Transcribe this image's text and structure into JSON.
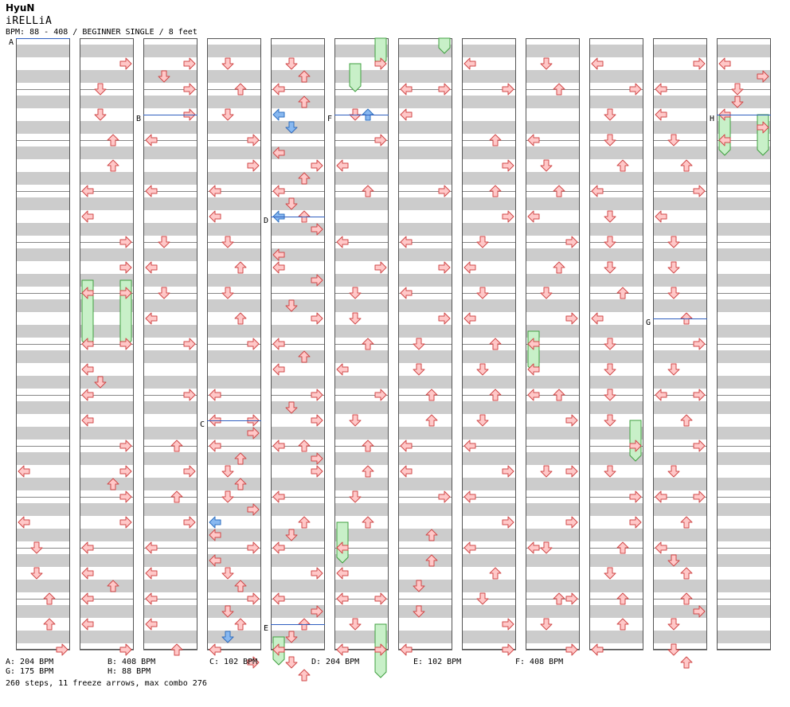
{
  "header": {
    "artist": "HyuN",
    "title": "iRELLiA",
    "meta": "BPM: 88 - 408 / BEGINNER SINGLE / 8 feet"
  },
  "bpm_legend": [
    {
      "text": "A: 204 BPM"
    },
    {
      "text": "B: 408 BPM"
    },
    {
      "text": "C: 102 BPM"
    },
    {
      "text": "D: 204 BPM"
    },
    {
      "text": "E: 102 BPM"
    },
    {
      "text": "F: 408 BPM"
    },
    {
      "text": "G: 175 BPM"
    },
    {
      "text": "H: 88 BPM"
    }
  ],
  "summary": "260 steps, 11 freeze arrows, max combo 276",
  "colors": {
    "stripe": "#cccccc",
    "arrow_fill": "#ffc8c8",
    "arrow_stroke": "#d04848",
    "shock_fill": "#88b8f0",
    "shock_stroke": "#3070c0",
    "freeze_fill": "#c8f0c8",
    "freeze_stroke": "#40a040",
    "bpm_line": "#3060c0"
  },
  "chart_data": {
    "type": "step-chart",
    "columns": 12,
    "rows_per_column": 48,
    "bpm_markers": [
      {
        "label": "A",
        "col": 0,
        "row": 0
      },
      {
        "label": "B",
        "col": 2,
        "row": 6
      },
      {
        "label": "C",
        "col": 3,
        "row": 30
      },
      {
        "label": "D",
        "col": 4,
        "row": 14
      },
      {
        "label": "E",
        "col": 4,
        "row": 46
      },
      {
        "label": "F",
        "col": 5,
        "row": 6
      },
      {
        "label": "G",
        "col": 10,
        "row": 22
      },
      {
        "label": "H",
        "col": 11,
        "row": 6
      }
    ],
    "arrows": [
      [
        0,
        34,
        "L"
      ],
      [
        0,
        38,
        "L"
      ],
      [
        0,
        40,
        "D"
      ],
      [
        0,
        42,
        "D"
      ],
      [
        0,
        44,
        "U"
      ],
      [
        0,
        46,
        "U"
      ],
      [
        0,
        48,
        "R"
      ],
      [
        1,
        2,
        "R"
      ],
      [
        1,
        4,
        "D"
      ],
      [
        1,
        6,
        "D"
      ],
      [
        1,
        8,
        "U"
      ],
      [
        1,
        10,
        "U"
      ],
      [
        1,
        12,
        "L"
      ],
      [
        1,
        14,
        "L"
      ],
      [
        1,
        16,
        "R"
      ],
      [
        1,
        18,
        "R"
      ],
      [
        1,
        20,
        "L"
      ],
      [
        1,
        20,
        "R"
      ],
      [
        1,
        24,
        "L"
      ],
      [
        1,
        24,
        "R"
      ],
      [
        1,
        26,
        "L"
      ],
      [
        1,
        27,
        "D"
      ],
      [
        1,
        28,
        "L"
      ],
      [
        1,
        30,
        "L"
      ],
      [
        1,
        32,
        "R"
      ],
      [
        1,
        34,
        "R"
      ],
      [
        1,
        35,
        "U"
      ],
      [
        1,
        36,
        "R"
      ],
      [
        1,
        38,
        "R"
      ],
      [
        1,
        40,
        "L"
      ],
      [
        1,
        42,
        "L"
      ],
      [
        1,
        43,
        "U"
      ],
      [
        1,
        44,
        "L"
      ],
      [
        1,
        46,
        "L"
      ],
      [
        1,
        48,
        "R"
      ],
      [
        2,
        2,
        "R"
      ],
      [
        2,
        3,
        "D"
      ],
      [
        2,
        4,
        "R"
      ],
      [
        2,
        6,
        "R"
      ],
      [
        2,
        8,
        "L"
      ],
      [
        2,
        12,
        "L"
      ],
      [
        2,
        16,
        "D"
      ],
      [
        2,
        18,
        "L"
      ],
      [
        2,
        20,
        "D"
      ],
      [
        2,
        22,
        "L"
      ],
      [
        2,
        24,
        "R"
      ],
      [
        2,
        28,
        "R"
      ],
      [
        2,
        32,
        "U"
      ],
      [
        2,
        34,
        "R"
      ],
      [
        2,
        36,
        "U"
      ],
      [
        2,
        38,
        "R"
      ],
      [
        2,
        40,
        "L"
      ],
      [
        2,
        42,
        "L"
      ],
      [
        2,
        44,
        "L"
      ],
      [
        2,
        46,
        "L"
      ],
      [
        2,
        48,
        "U"
      ],
      [
        3,
        2,
        "D"
      ],
      [
        3,
        4,
        "U"
      ],
      [
        3,
        6,
        "D"
      ],
      [
        3,
        8,
        "R"
      ],
      [
        3,
        10,
        "R"
      ],
      [
        3,
        12,
        "L"
      ],
      [
        3,
        14,
        "L"
      ],
      [
        3,
        16,
        "D"
      ],
      [
        3,
        18,
        "U"
      ],
      [
        3,
        20,
        "D"
      ],
      [
        3,
        22,
        "U"
      ],
      [
        3,
        24,
        "R"
      ],
      [
        3,
        28,
        "L"
      ],
      [
        3,
        30,
        "L"
      ],
      [
        3,
        30,
        "R"
      ],
      [
        3,
        31,
        "R"
      ],
      [
        3,
        32,
        "L"
      ],
      [
        3,
        33,
        "U"
      ],
      [
        3,
        34,
        "D"
      ],
      [
        3,
        35,
        "U"
      ],
      [
        3,
        36,
        "D"
      ],
      [
        3,
        37,
        "R"
      ],
      [
        3,
        39,
        "L"
      ],
      [
        3,
        40,
        "R"
      ],
      [
        3,
        41,
        "L"
      ],
      [
        3,
        42,
        "D"
      ],
      [
        3,
        43,
        "U"
      ],
      [
        3,
        44,
        "R"
      ],
      [
        3,
        45,
        "D"
      ],
      [
        3,
        46,
        "U"
      ],
      [
        3,
        47,
        "D"
      ],
      [
        3,
        48,
        "L"
      ],
      [
        3,
        49,
        "R"
      ],
      [
        4,
        2,
        "D"
      ],
      [
        4,
        3,
        "U"
      ],
      [
        4,
        4,
        "L"
      ],
      [
        4,
        5,
        "U"
      ],
      [
        4,
        7,
        "D"
      ],
      [
        4,
        9,
        "L"
      ],
      [
        4,
        10,
        "R"
      ],
      [
        4,
        11,
        "U"
      ],
      [
        4,
        12,
        "L"
      ],
      [
        4,
        13,
        "D"
      ],
      [
        4,
        14,
        "U"
      ],
      [
        4,
        15,
        "R"
      ],
      [
        4,
        17,
        "L"
      ],
      [
        4,
        18,
        "L"
      ],
      [
        4,
        19,
        "R"
      ],
      [
        4,
        21,
        "D"
      ],
      [
        4,
        22,
        "R"
      ],
      [
        4,
        24,
        "L"
      ],
      [
        4,
        25,
        "U"
      ],
      [
        4,
        26,
        "L"
      ],
      [
        4,
        28,
        "R"
      ],
      [
        4,
        29,
        "D"
      ],
      [
        4,
        30,
        "R"
      ],
      [
        4,
        32,
        "L"
      ],
      [
        4,
        32,
        "U"
      ],
      [
        4,
        33,
        "R"
      ],
      [
        4,
        34,
        "R"
      ],
      [
        4,
        36,
        "L"
      ],
      [
        4,
        38,
        "U"
      ],
      [
        4,
        39,
        "D"
      ],
      [
        4,
        40,
        "L"
      ],
      [
        4,
        42,
        "R"
      ],
      [
        4,
        44,
        "L"
      ],
      [
        4,
        45,
        "R"
      ],
      [
        4,
        46,
        "U"
      ],
      [
        4,
        47,
        "D"
      ],
      [
        4,
        48,
        "L"
      ],
      [
        4,
        49,
        "D"
      ],
      [
        4,
        50,
        "U"
      ],
      [
        5,
        2,
        "R"
      ],
      [
        5,
        6,
        "D"
      ],
      [
        5,
        8,
        "R"
      ],
      [
        5,
        10,
        "L"
      ],
      [
        5,
        12,
        "U"
      ],
      [
        5,
        16,
        "L"
      ],
      [
        5,
        18,
        "R"
      ],
      [
        5,
        20,
        "D"
      ],
      [
        5,
        22,
        "D"
      ],
      [
        5,
        24,
        "U"
      ],
      [
        5,
        26,
        "L"
      ],
      [
        5,
        28,
        "R"
      ],
      [
        5,
        30,
        "D"
      ],
      [
        5,
        32,
        "U"
      ],
      [
        5,
        34,
        "U"
      ],
      [
        5,
        36,
        "D"
      ],
      [
        5,
        38,
        "U"
      ],
      [
        5,
        40,
        "L"
      ],
      [
        5,
        42,
        "L"
      ],
      [
        5,
        44,
        "L"
      ],
      [
        5,
        44,
        "R"
      ],
      [
        5,
        46,
        "D"
      ],
      [
        5,
        48,
        "L"
      ],
      [
        5,
        48,
        "R"
      ],
      [
        6,
        4,
        "L"
      ],
      [
        6,
        4,
        "R"
      ],
      [
        6,
        6,
        "L"
      ],
      [
        6,
        12,
        "R"
      ],
      [
        6,
        16,
        "L"
      ],
      [
        6,
        18,
        "R"
      ],
      [
        6,
        20,
        "L"
      ],
      [
        6,
        22,
        "R"
      ],
      [
        6,
        24,
        "D"
      ],
      [
        6,
        26,
        "D"
      ],
      [
        6,
        28,
        "U"
      ],
      [
        6,
        30,
        "U"
      ],
      [
        6,
        32,
        "L"
      ],
      [
        6,
        34,
        "L"
      ],
      [
        6,
        36,
        "R"
      ],
      [
        6,
        39,
        "U"
      ],
      [
        6,
        41,
        "U"
      ],
      [
        6,
        43,
        "D"
      ],
      [
        6,
        45,
        "D"
      ],
      [
        6,
        48,
        "L"
      ],
      [
        7,
        2,
        "L"
      ],
      [
        7,
        4,
        "R"
      ],
      [
        7,
        8,
        "U"
      ],
      [
        7,
        10,
        "R"
      ],
      [
        7,
        12,
        "U"
      ],
      [
        7,
        14,
        "R"
      ],
      [
        7,
        16,
        "D"
      ],
      [
        7,
        18,
        "L"
      ],
      [
        7,
        20,
        "D"
      ],
      [
        7,
        22,
        "L"
      ],
      [
        7,
        24,
        "U"
      ],
      [
        7,
        26,
        "D"
      ],
      [
        7,
        28,
        "U"
      ],
      [
        7,
        30,
        "D"
      ],
      [
        7,
        32,
        "L"
      ],
      [
        7,
        34,
        "R"
      ],
      [
        7,
        36,
        "L"
      ],
      [
        7,
        38,
        "R"
      ],
      [
        7,
        40,
        "L"
      ],
      [
        7,
        42,
        "U"
      ],
      [
        7,
        44,
        "D"
      ],
      [
        7,
        46,
        "R"
      ],
      [
        7,
        48,
        "R"
      ],
      [
        8,
        2,
        "D"
      ],
      [
        8,
        4,
        "U"
      ],
      [
        8,
        8,
        "L"
      ],
      [
        8,
        10,
        "D"
      ],
      [
        8,
        12,
        "U"
      ],
      [
        8,
        14,
        "L"
      ],
      [
        8,
        16,
        "R"
      ],
      [
        8,
        18,
        "U"
      ],
      [
        8,
        20,
        "D"
      ],
      [
        8,
        22,
        "R"
      ],
      [
        8,
        24,
        "L"
      ],
      [
        8,
        26,
        "L"
      ],
      [
        8,
        28,
        "L"
      ],
      [
        8,
        28,
        "U"
      ],
      [
        8,
        30,
        "R"
      ],
      [
        8,
        34,
        "D"
      ],
      [
        8,
        34,
        "R"
      ],
      [
        8,
        38,
        "R"
      ],
      [
        8,
        40,
        "L"
      ],
      [
        8,
        40,
        "D"
      ],
      [
        8,
        44,
        "U"
      ],
      [
        8,
        44,
        "R"
      ],
      [
        8,
        46,
        "D"
      ],
      [
        8,
        48,
        "R"
      ],
      [
        9,
        2,
        "L"
      ],
      [
        9,
        4,
        "R"
      ],
      [
        9,
        6,
        "D"
      ],
      [
        9,
        8,
        "D"
      ],
      [
        9,
        10,
        "U"
      ],
      [
        9,
        12,
        "L"
      ],
      [
        9,
        14,
        "D"
      ],
      [
        9,
        16,
        "D"
      ],
      [
        9,
        18,
        "D"
      ],
      [
        9,
        20,
        "U"
      ],
      [
        9,
        22,
        "L"
      ],
      [
        9,
        24,
        "D"
      ],
      [
        9,
        26,
        "D"
      ],
      [
        9,
        28,
        "D"
      ],
      [
        9,
        30,
        "D"
      ],
      [
        9,
        32,
        "R"
      ],
      [
        9,
        34,
        "D"
      ],
      [
        9,
        36,
        "R"
      ],
      [
        9,
        38,
        "R"
      ],
      [
        9,
        40,
        "U"
      ],
      [
        9,
        42,
        "D"
      ],
      [
        9,
        44,
        "U"
      ],
      [
        9,
        46,
        "U"
      ],
      [
        9,
        48,
        "L"
      ],
      [
        10,
        2,
        "R"
      ],
      [
        10,
        4,
        "L"
      ],
      [
        10,
        6,
        "L"
      ],
      [
        10,
        8,
        "D"
      ],
      [
        10,
        10,
        "U"
      ],
      [
        10,
        12,
        "R"
      ],
      [
        10,
        14,
        "L"
      ],
      [
        10,
        16,
        "D"
      ],
      [
        10,
        18,
        "D"
      ],
      [
        10,
        20,
        "D"
      ],
      [
        10,
        22,
        "U"
      ],
      [
        10,
        24,
        "R"
      ],
      [
        10,
        26,
        "D"
      ],
      [
        10,
        28,
        "L"
      ],
      [
        10,
        28,
        "R"
      ],
      [
        10,
        30,
        "U"
      ],
      [
        10,
        32,
        "R"
      ],
      [
        10,
        34,
        "D"
      ],
      [
        10,
        36,
        "L"
      ],
      [
        10,
        36,
        "R"
      ],
      [
        10,
        38,
        "U"
      ],
      [
        10,
        40,
        "L"
      ],
      [
        10,
        41,
        "D"
      ],
      [
        10,
        42,
        "U"
      ],
      [
        10,
        44,
        "U"
      ],
      [
        10,
        45,
        "R"
      ],
      [
        10,
        46,
        "D"
      ],
      [
        10,
        48,
        "D"
      ],
      [
        10,
        49,
        "U"
      ],
      [
        11,
        2,
        "L"
      ],
      [
        11,
        3,
        "R"
      ],
      [
        11,
        4,
        "D"
      ],
      [
        11,
        5,
        "D"
      ],
      [
        11,
        6,
        "L"
      ],
      [
        11,
        7,
        "R"
      ],
      [
        11,
        8,
        "L"
      ]
    ],
    "shocks": [
      [
        4,
        6,
        "L"
      ],
      [
        4,
        7,
        "D"
      ],
      [
        4,
        14,
        "L"
      ],
      [
        5,
        6,
        "U"
      ],
      [
        3,
        38,
        "L"
      ],
      [
        3,
        47,
        "D"
      ]
    ],
    "freezes": [
      [
        1,
        19,
        24,
        0
      ],
      [
        1,
        19,
        24,
        3
      ],
      [
        4,
        47,
        49,
        0
      ],
      [
        5,
        0,
        2,
        3
      ],
      [
        5,
        2,
        4,
        1
      ],
      [
        5,
        38,
        41,
        0
      ],
      [
        5,
        46,
        50,
        3
      ],
      [
        6,
        0,
        1,
        3
      ],
      [
        8,
        23,
        26,
        0
      ],
      [
        9,
        30,
        33,
        3
      ],
      [
        11,
        6,
        9,
        0
      ],
      [
        11,
        6,
        9,
        3
      ]
    ]
  }
}
